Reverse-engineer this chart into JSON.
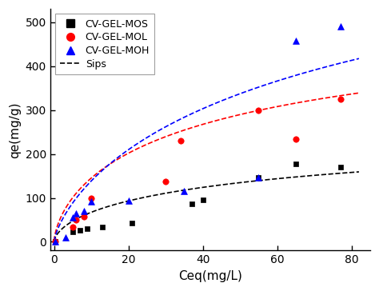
{
  "title": "",
  "xlabel": "Ceq(mg/L)",
  "ylabel": "qe(mg/g)",
  "xlim": [
    -1,
    85
  ],
  "ylim": [
    -20,
    530
  ],
  "xticks": [
    0,
    20,
    40,
    60,
    80
  ],
  "yticks": [
    0,
    100,
    200,
    300,
    400,
    500
  ],
  "MOS_x": [
    0.3,
    5,
    7,
    9,
    13,
    21,
    37,
    40,
    55,
    65,
    77
  ],
  "MOS_y": [
    0,
    23,
    27,
    30,
    33,
    43,
    86,
    95,
    147,
    178,
    170
  ],
  "MOL_x": [
    0.3,
    5,
    6,
    8,
    10,
    30,
    34,
    55,
    65,
    77
  ],
  "MOL_y": [
    0,
    33,
    50,
    57,
    100,
    137,
    230,
    300,
    234,
    325
  ],
  "MOH_x": [
    0.3,
    3,
    5,
    6,
    8,
    10,
    20,
    35,
    55,
    65,
    77
  ],
  "MOH_y": [
    0,
    10,
    55,
    65,
    70,
    92,
    93,
    115,
    147,
    458,
    490
  ],
  "color_MOS": "#000000",
  "color_MOL": "#ff0000",
  "color_MOH": "#0000ff",
  "sips_MOS_qm": 320,
  "sips_MOS_ks": 0.012,
  "sips_MOS_n": 1.6,
  "sips_MOL_qm": 600,
  "sips_MOL_ks": 0.018,
  "sips_MOL_n": 1.5,
  "sips_MOH_qm": 900,
  "sips_MOH_ks": 0.01,
  "sips_MOH_n": 1.35,
  "legend_labels": [
    "CV-GEL-MOS",
    "CV-GEL-MOL",
    "CV-GEL-MOH",
    "Sips"
  ],
  "background_color": "#ffffff",
  "figsize": [
    4.74,
    3.64
  ],
  "dpi": 100
}
